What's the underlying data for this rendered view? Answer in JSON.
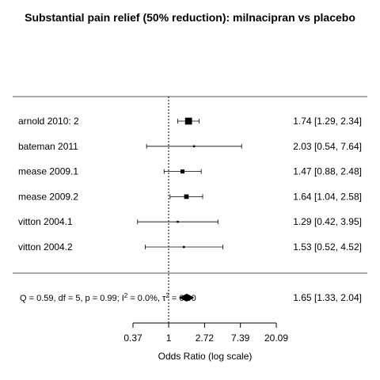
{
  "chart_data": {
    "type": "forest",
    "title": "Substantial pain relief (50% reduction): milnacipran vs placebo",
    "xlabel": "Odds Ratio (log scale)",
    "x_scale": "log",
    "xlim": [
      0.37,
      20.09
    ],
    "xticks": [
      "0.37",
      "1",
      "2.72",
      "7.39",
      "20.09"
    ],
    "reference_line": 1,
    "studies": [
      {
        "label": "arnold 2010: 2",
        "or": 1.74,
        "ci": [
          1.29,
          2.34
        ],
        "ci_text": "1.74 [1.29, 2.34]"
      },
      {
        "label": "bateman 2011",
        "or": 2.03,
        "ci": [
          0.54,
          7.64
        ],
        "ci_text": "2.03 [0.54, 7.64]"
      },
      {
        "label": "mease 2009.1",
        "or": 1.47,
        "ci": [
          0.88,
          2.48
        ],
        "ci_text": "1.47 [0.88, 2.48]"
      },
      {
        "label": "mease 2009.2",
        "or": 1.64,
        "ci": [
          1.04,
          2.58
        ],
        "ci_text": "1.64 [1.04, 2.58]"
      },
      {
        "label": "vitton 2004.1",
        "or": 1.29,
        "ci": [
          0.42,
          3.95
        ],
        "ci_text": "1.29 [0.42, 3.95]"
      },
      {
        "label": "vitton 2004.2",
        "or": 1.53,
        "ci": [
          0.52,
          4.52
        ],
        "ci_text": "1.53 [0.52, 4.52]"
      }
    ],
    "summary": {
      "or": 1.65,
      "ci": [
        1.33,
        2.04
      ],
      "ci_text": "1.65 [1.33, 2.04]",
      "stats_prefix": "Q = 0.59, df = 5, p = 0.99; I",
      "stats_sup": "2",
      "stats_mid": " = 0.0%, τ",
      "stats_sup2": "2",
      "stats_suffix": " = 0.00"
    }
  }
}
